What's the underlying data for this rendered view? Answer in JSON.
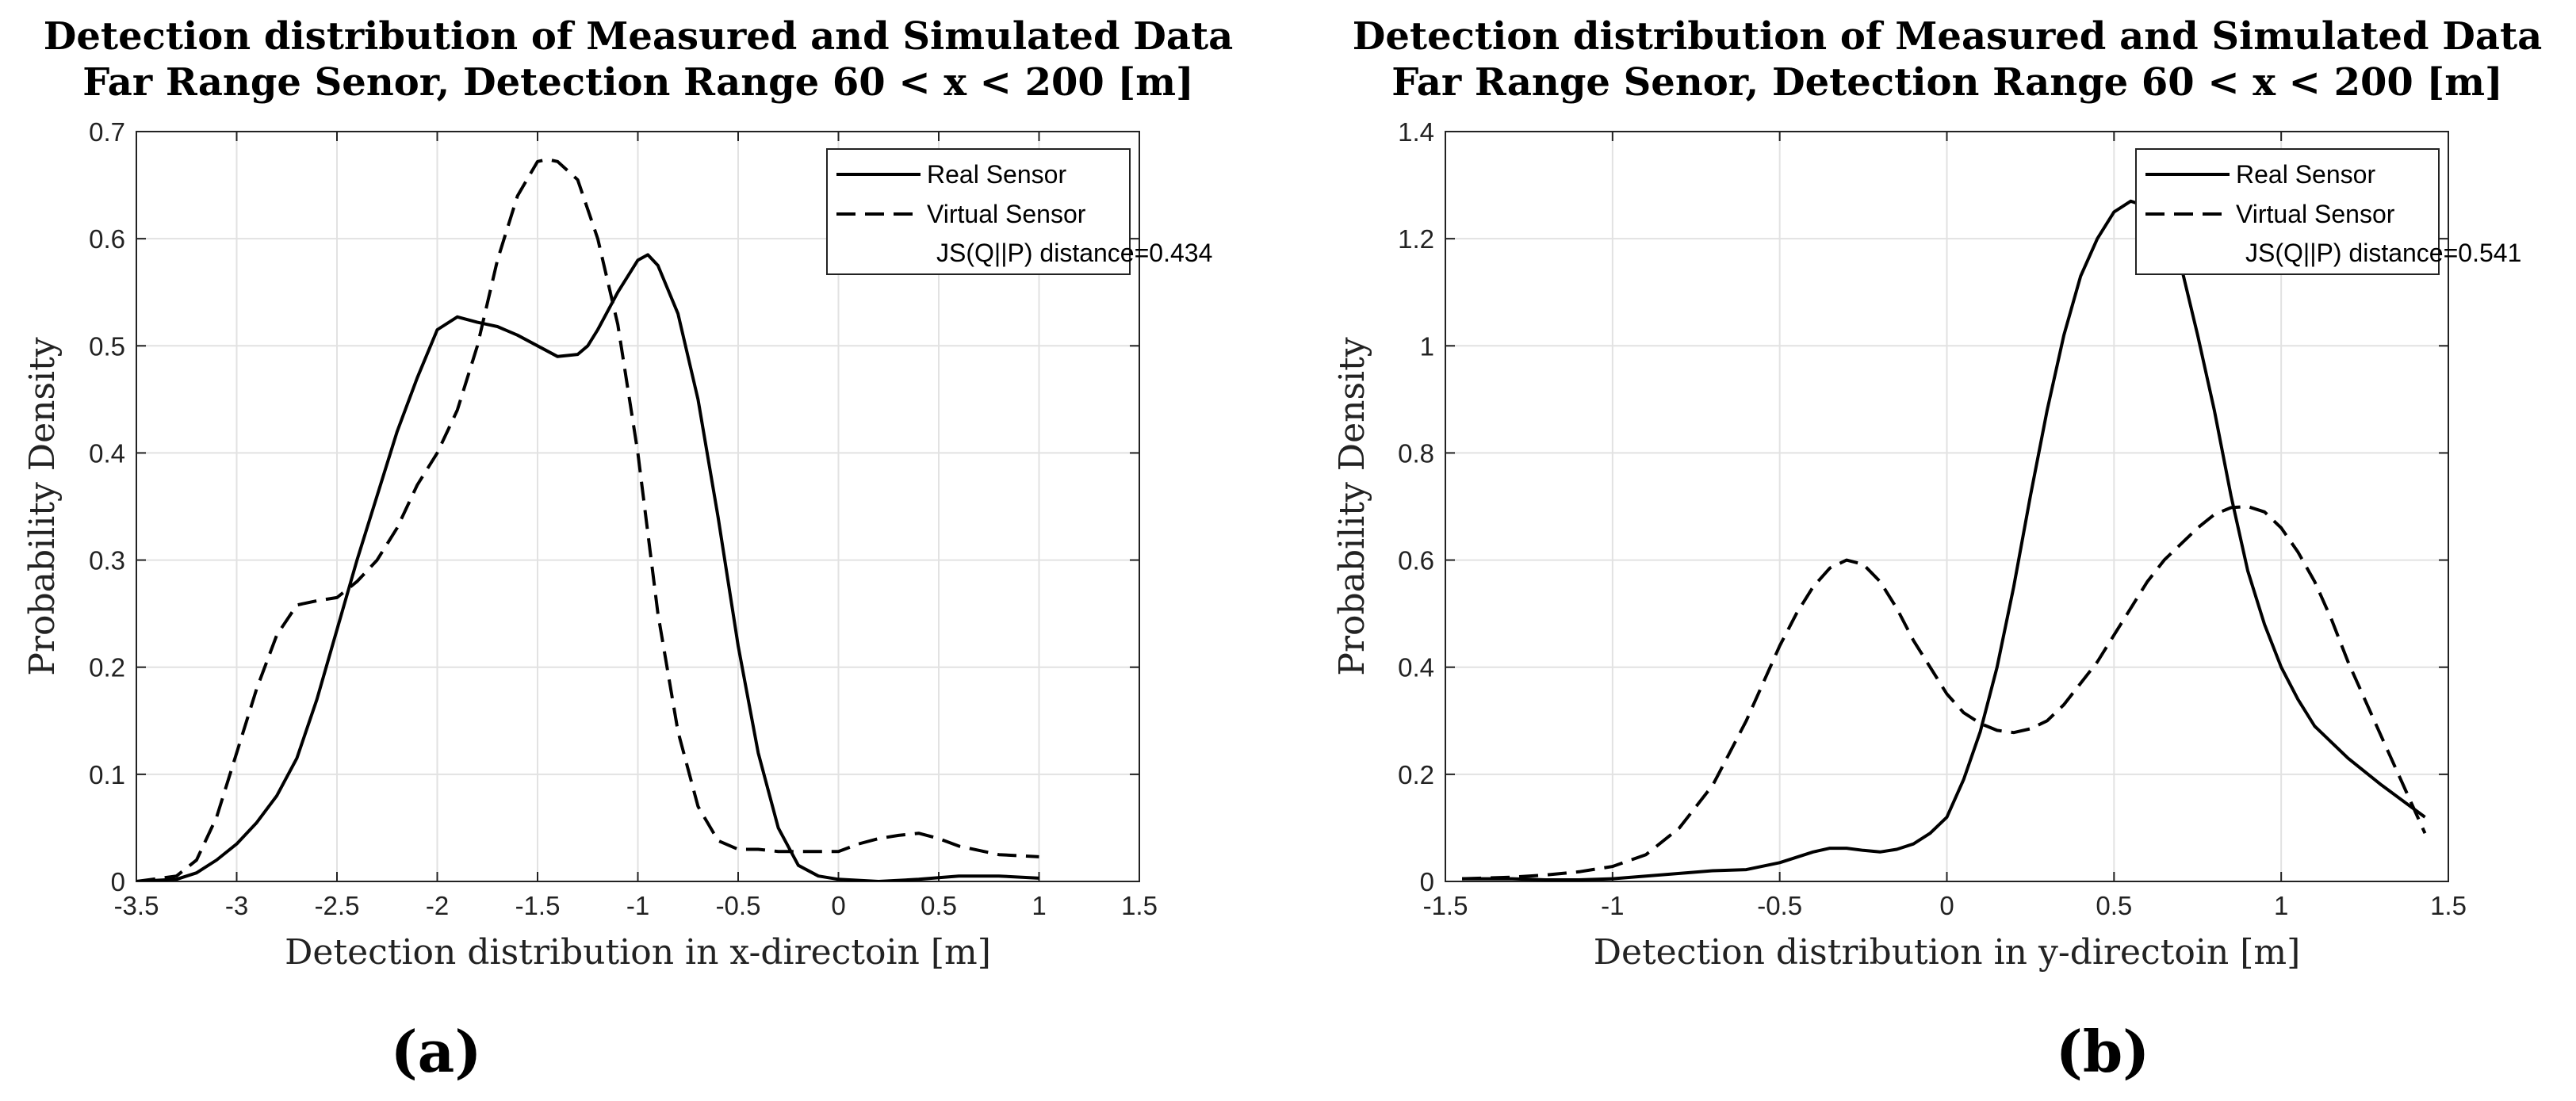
{
  "chart_data": [
    {
      "type": "line",
      "panel_label": "(a)",
      "title": [
        "Detection distribution of Measured and Simulated Data",
        "Far Range Senor, Detection Range 60 < x < 200 [m]"
      ],
      "xlabel": "Detection distribution in x-directoin [m]",
      "ylabel": "Probability Density",
      "xlim": [
        -3.5,
        1.5
      ],
      "ylim": [
        0,
        0.7
      ],
      "xticks": [
        -3.5,
        -3,
        -2.5,
        -2,
        -1.5,
        -1,
        -0.5,
        0,
        0.5,
        1,
        1.5
      ],
      "xtick_labels": [
        "-3.5",
        "-3",
        "-2.5",
        "-2",
        "-1.5",
        "-1",
        "-0.5",
        "0",
        "0.5",
        "1",
        "1.5"
      ],
      "yticks": [
        0,
        0.1,
        0.2,
        0.3,
        0.4,
        0.5,
        0.6,
        0.7
      ],
      "ytick_labels": [
        "0",
        "0.1",
        "0.2",
        "0.3",
        "0.4",
        "0.5",
        "0.6",
        "0.7"
      ],
      "grid": true,
      "legend_position": "top-right",
      "legend_note": "JS(Q||P) distance=0.434",
      "series": [
        {
          "name": "Real Sensor",
          "style": "solid",
          "x": [
            -3.5,
            -3.3,
            -3.2,
            -3.1,
            -3.0,
            -2.9,
            -2.8,
            -2.7,
            -2.6,
            -2.5,
            -2.4,
            -2.3,
            -2.2,
            -2.1,
            -2.0,
            -1.9,
            -1.8,
            -1.7,
            -1.6,
            -1.5,
            -1.4,
            -1.3,
            -1.25,
            -1.2,
            -1.1,
            -1.0,
            -0.95,
            -0.9,
            -0.8,
            -0.7,
            -0.6,
            -0.5,
            -0.4,
            -0.3,
            -0.2,
            -0.1,
            0.0,
            0.2,
            0.4,
            0.6,
            0.8,
            1.0
          ],
          "y": [
            0.0,
            0.002,
            0.008,
            0.02,
            0.035,
            0.055,
            0.08,
            0.115,
            0.17,
            0.235,
            0.3,
            0.36,
            0.42,
            0.47,
            0.515,
            0.527,
            0.522,
            0.518,
            0.51,
            0.5,
            0.49,
            0.492,
            0.5,
            0.515,
            0.55,
            0.58,
            0.585,
            0.575,
            0.53,
            0.45,
            0.34,
            0.22,
            0.12,
            0.05,
            0.015,
            0.005,
            0.002,
            0.0,
            0.002,
            0.005,
            0.005,
            0.003
          ]
        },
        {
          "name": "Virtual Sensor",
          "style": "dashed",
          "x": [
            -3.5,
            -3.3,
            -3.2,
            -3.1,
            -3.0,
            -2.9,
            -2.8,
            -2.7,
            -2.6,
            -2.5,
            -2.4,
            -2.3,
            -2.2,
            -2.1,
            -2.0,
            -1.9,
            -1.8,
            -1.7,
            -1.6,
            -1.5,
            -1.45,
            -1.4,
            -1.3,
            -1.2,
            -1.1,
            -1.0,
            -0.9,
            -0.8,
            -0.7,
            -0.6,
            -0.5,
            -0.4,
            -0.3,
            -0.2,
            -0.1,
            0.0,
            0.1,
            0.2,
            0.3,
            0.4,
            0.5,
            0.6,
            0.8,
            1.0
          ],
          "y": [
            0.0,
            0.005,
            0.02,
            0.06,
            0.12,
            0.18,
            0.23,
            0.258,
            0.262,
            0.265,
            0.28,
            0.3,
            0.33,
            0.37,
            0.4,
            0.44,
            0.5,
            0.58,
            0.64,
            0.672,
            0.674,
            0.672,
            0.655,
            0.6,
            0.52,
            0.4,
            0.25,
            0.14,
            0.07,
            0.038,
            0.03,
            0.03,
            0.028,
            0.028,
            0.028,
            0.028,
            0.035,
            0.04,
            0.043,
            0.045,
            0.04,
            0.033,
            0.025,
            0.023
          ]
        }
      ]
    },
    {
      "type": "line",
      "panel_label": "(b)",
      "title": [
        "Detection distribution of Measured and Simulated Data",
        "Far Range Senor, Detection Range 60 < x < 200 [m]"
      ],
      "xlabel": "Detection distribution in y-directoin [m]",
      "ylabel": "Probability Density",
      "xlim": [
        -1.5,
        1.5
      ],
      "ylim": [
        0,
        1.4
      ],
      "xticks": [
        -1.5,
        -1,
        -0.5,
        0,
        0.5,
        1,
        1.5
      ],
      "xtick_labels": [
        "-1.5",
        "-1",
        "-0.5",
        "0",
        "0.5",
        "1",
        "1.5"
      ],
      "yticks": [
        0,
        0.2,
        0.4,
        0.6,
        0.8,
        1.0,
        1.2,
        1.4
      ],
      "ytick_labels": [
        "0",
        "0.2",
        "0.4",
        "0.6",
        "0.8",
        "1",
        "1.2",
        "1.4"
      ],
      "grid": true,
      "legend_position": "top-right",
      "legend_note": "JS(Q||P) distance=0.541",
      "series": [
        {
          "name": "Real Sensor",
          "style": "solid",
          "x": [
            -1.45,
            -1.3,
            -1.2,
            -1.1,
            -1.0,
            -0.9,
            -0.8,
            -0.7,
            -0.6,
            -0.5,
            -0.4,
            -0.35,
            -0.3,
            -0.25,
            -0.2,
            -0.15,
            -0.1,
            -0.05,
            0.0,
            0.05,
            0.1,
            0.15,
            0.2,
            0.25,
            0.3,
            0.35,
            0.4,
            0.45,
            0.5,
            0.55,
            0.6,
            0.65,
            0.7,
            0.75,
            0.8,
            0.85,
            0.9,
            0.95,
            1.0,
            1.05,
            1.1,
            1.15,
            1.2,
            1.3,
            1.43
          ],
          "y": [
            0.005,
            0.005,
            0.003,
            0.003,
            0.005,
            0.01,
            0.015,
            0.02,
            0.022,
            0.035,
            0.055,
            0.062,
            0.062,
            0.058,
            0.055,
            0.06,
            0.07,
            0.09,
            0.12,
            0.19,
            0.28,
            0.4,
            0.55,
            0.72,
            0.88,
            1.02,
            1.13,
            1.2,
            1.25,
            1.27,
            1.26,
            1.22,
            1.15,
            1.02,
            0.88,
            0.72,
            0.58,
            0.48,
            0.4,
            0.34,
            0.29,
            0.26,
            0.23,
            0.18,
            0.12
          ]
        },
        {
          "name": "Virtual Sensor",
          "style": "dashed",
          "x": [
            -1.45,
            -1.3,
            -1.2,
            -1.1,
            -1.0,
            -0.9,
            -0.8,
            -0.7,
            -0.6,
            -0.5,
            -0.45,
            -0.4,
            -0.35,
            -0.3,
            -0.25,
            -0.2,
            -0.15,
            -0.1,
            -0.05,
            0.0,
            0.05,
            0.1,
            0.15,
            0.2,
            0.25,
            0.3,
            0.35,
            0.4,
            0.45,
            0.5,
            0.55,
            0.6,
            0.65,
            0.7,
            0.75,
            0.8,
            0.85,
            0.9,
            0.95,
            1.0,
            1.05,
            1.1,
            1.15,
            1.2,
            1.3,
            1.43
          ],
          "y": [
            0.005,
            0.008,
            0.012,
            0.018,
            0.028,
            0.05,
            0.1,
            0.18,
            0.3,
            0.44,
            0.5,
            0.55,
            0.585,
            0.6,
            0.592,
            0.56,
            0.51,
            0.45,
            0.4,
            0.35,
            0.315,
            0.295,
            0.282,
            0.278,
            0.285,
            0.3,
            0.33,
            0.37,
            0.41,
            0.46,
            0.51,
            0.56,
            0.6,
            0.63,
            0.66,
            0.685,
            0.698,
            0.7,
            0.69,
            0.66,
            0.615,
            0.56,
            0.49,
            0.41,
            0.27,
            0.09
          ]
        }
      ]
    }
  ]
}
